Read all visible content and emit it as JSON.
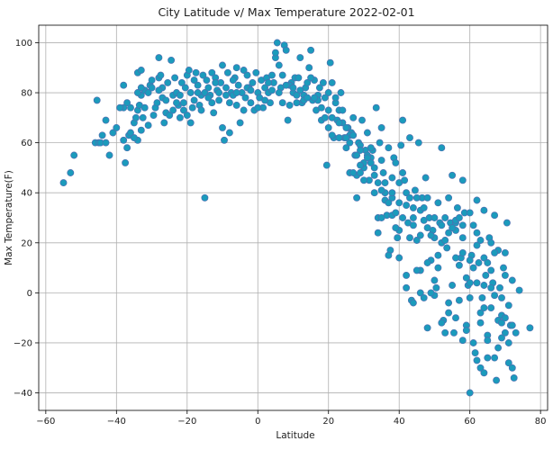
{
  "chart_data": {
    "type": "scatter",
    "title": "City Latitude v/ Max Temperature 2022-02-01",
    "xlabel": "Latitude",
    "ylabel": "Max Temperature(F)",
    "xlim": [
      -62,
      82
    ],
    "ylim": [
      -47,
      107
    ],
    "xticks": [
      -60,
      -40,
      -20,
      0,
      20,
      40,
      60,
      80
    ],
    "yticks": [
      -40,
      -20,
      0,
      20,
      40,
      60,
      80,
      100
    ],
    "grid": true,
    "marker_color": "#1b9bbc",
    "marker_edge": "#4d6fb0",
    "points": [
      [
        -55,
        44
      ],
      [
        -53,
        48
      ],
      [
        -52,
        55
      ],
      [
        -46,
        60
      ],
      [
        -45.5,
        77
      ],
      [
        -45,
        60
      ],
      [
        -44.5,
        60
      ],
      [
        -43,
        69
      ],
      [
        -42,
        55
      ],
      [
        -41,
        64
      ],
      [
        -40,
        66
      ],
      [
        -38,
        83
      ],
      [
        -38,
        61
      ],
      [
        -37.5,
        52
      ],
      [
        -37,
        58
      ],
      [
        -36.5,
        63
      ],
      [
        -36,
        64
      ],
      [
        -35,
        68
      ],
      [
        -34.5,
        70
      ],
      [
        -34,
        73
      ],
      [
        -34,
        61
      ],
      [
        -34,
        88
      ],
      [
        -33.5,
        75
      ],
      [
        -33,
        89
      ],
      [
        -33,
        65
      ],
      [
        -33,
        79
      ],
      [
        -32.5,
        70
      ],
      [
        -32,
        81
      ],
      [
        -31,
        67
      ],
      [
        -30.5,
        83
      ],
      [
        -30,
        85
      ],
      [
        -29.5,
        71
      ],
      [
        -29,
        74
      ],
      [
        -28.5,
        76
      ],
      [
        -28,
        86
      ],
      [
        -28,
        94
      ],
      [
        -27.5,
        87
      ],
      [
        -27,
        78
      ],
      [
        -26.5,
        68
      ],
      [
        -26,
        72
      ],
      [
        -25.5,
        84
      ],
      [
        -25,
        71
      ],
      [
        -24.5,
        93
      ],
      [
        -24,
        79
      ],
      [
        -23.5,
        86
      ],
      [
        -23,
        80
      ],
      [
        -22.5,
        75
      ],
      [
        -22,
        70
      ],
      [
        -21.5,
        84
      ],
      [
        -21,
        76
      ],
      [
        -20.5,
        82
      ],
      [
        -20,
        87
      ],
      [
        -20,
        71
      ],
      [
        -19.5,
        89
      ],
      [
        -19,
        80
      ],
      [
        -19,
        68
      ],
      [
        -18.5,
        74
      ],
      [
        -18,
        85
      ],
      [
        -17.5,
        88
      ],
      [
        -17,
        83
      ],
      [
        -16.5,
        75
      ],
      [
        -16,
        79
      ],
      [
        -15.5,
        87
      ],
      [
        -15,
        80
      ],
      [
        -15,
        38
      ],
      [
        -14.5,
        85
      ],
      [
        -14,
        82
      ],
      [
        -13.5,
        79
      ],
      [
        -13,
        88
      ],
      [
        -12.5,
        72
      ],
      [
        -12,
        86
      ],
      [
        -11.5,
        81
      ],
      [
        -11,
        77
      ],
      [
        -10.5,
        84
      ],
      [
        -10,
        91
      ],
      [
        -10,
        66
      ],
      [
        -9.5,
        61
      ],
      [
        -9,
        82
      ],
      [
        -8.5,
        88
      ],
      [
        -8,
        64
      ],
      [
        -7.5,
        80
      ],
      [
        -7,
        79
      ],
      [
        -6.5,
        86
      ],
      [
        -6,
        90
      ],
      [
        -6,
        75
      ],
      [
        -5.5,
        83
      ],
      [
        -5,
        68
      ],
      [
        -4.5,
        80
      ],
      [
        -4,
        89
      ],
      [
        -3.5,
        78
      ],
      [
        -3,
        87
      ],
      [
        -2.5,
        82
      ],
      [
        -2,
        76
      ],
      [
        -1.5,
        84
      ],
      [
        -1,
        73
      ],
      [
        -0.5,
        88
      ],
      [
        0,
        80
      ],
      [
        0.5,
        78
      ],
      [
        1,
        85
      ],
      [
        1.5,
        74
      ],
      [
        2,
        82
      ],
      [
        2.5,
        86
      ],
      [
        3,
        80
      ],
      [
        3.5,
        76
      ],
      [
        4,
        87
      ],
      [
        4.5,
        84
      ],
      [
        5,
        94
      ],
      [
        5,
        96
      ],
      [
        5.5,
        100
      ],
      [
        6,
        91
      ],
      [
        6.5,
        82
      ],
      [
        7,
        87
      ],
      [
        7.5,
        99
      ],
      [
        8,
        97
      ],
      [
        8.5,
        69
      ],
      [
        9,
        75
      ],
      [
        9.5,
        84
      ],
      [
        10,
        80
      ],
      [
        10.5,
        86
      ],
      [
        11,
        79
      ],
      [
        11.5,
        86
      ],
      [
        12,
        94
      ],
      [
        12.5,
        76
      ],
      [
        13,
        79
      ],
      [
        13.5,
        82
      ],
      [
        14,
        84
      ],
      [
        14.5,
        90
      ],
      [
        15,
        97
      ],
      [
        15.5,
        77
      ],
      [
        16,
        85
      ],
      [
        16.5,
        73
      ],
      [
        17,
        79
      ],
      [
        17.5,
        82
      ],
      [
        18,
        69
      ],
      [
        18.5,
        84
      ],
      [
        19,
        70
      ],
      [
        19.5,
        51
      ],
      [
        20,
        80
      ],
      [
        20,
        66
      ],
      [
        20.5,
        92
      ],
      [
        21,
        70
      ],
      [
        21.5,
        62
      ],
      [
        22,
        76
      ],
      [
        22.5,
        69
      ],
      [
        23,
        73
      ],
      [
        23.5,
        80
      ],
      [
        24,
        68
      ],
      [
        24.5,
        62
      ],
      [
        25,
        58
      ],
      [
        25.5,
        66
      ],
      [
        26,
        48
      ],
      [
        26.5,
        64
      ],
      [
        27,
        70
      ],
      [
        27.5,
        55
      ],
      [
        28,
        47
      ],
      [
        28.5,
        60
      ],
      [
        29,
        59
      ],
      [
        29.5,
        69
      ],
      [
        30,
        50
      ],
      [
        30.5,
        57
      ],
      [
        31,
        64
      ],
      [
        31.5,
        45
      ],
      [
        32,
        54
      ],
      [
        32.5,
        57
      ],
      [
        33,
        40
      ],
      [
        33.5,
        74
      ],
      [
        34,
        24
      ],
      [
        34.5,
        60
      ],
      [
        35,
        66
      ],
      [
        35.5,
        48
      ],
      [
        36,
        44
      ],
      [
        36.5,
        31
      ],
      [
        37,
        58
      ],
      [
        37.5,
        17
      ],
      [
        38,
        38
      ],
      [
        38.5,
        54
      ],
      [
        39,
        52
      ],
      [
        39.5,
        22
      ],
      [
        40,
        44
      ],
      [
        40.5,
        59
      ],
      [
        41,
        69
      ],
      [
        41.5,
        45
      ],
      [
        42,
        7
      ],
      [
        42.5,
        28
      ],
      [
        43,
        62
      ],
      [
        43.5,
        -3
      ],
      [
        44,
        34
      ],
      [
        44.5,
        41
      ],
      [
        45,
        21
      ],
      [
        45.5,
        60
      ],
      [
        46,
        9
      ],
      [
        46.5,
        38
      ],
      [
        47,
        29
      ],
      [
        47.5,
        46
      ],
      [
        48,
        -14
      ],
      [
        48.5,
        30
      ],
      [
        49,
        13
      ],
      [
        49.5,
        25
      ],
      [
        50,
        -1
      ],
      [
        50.5,
        2
      ],
      [
        51,
        36
      ],
      [
        51.5,
        28
      ],
      [
        52,
        58
      ],
      [
        52.5,
        -11
      ],
      [
        53,
        30
      ],
      [
        53.5,
        18
      ],
      [
        54,
        -4
      ],
      [
        54.5,
        28
      ],
      [
        55,
        47
      ],
      [
        55.5,
        -16
      ],
      [
        56,
        25
      ],
      [
        56.5,
        34
      ],
      [
        57,
        -3
      ],
      [
        57.5,
        14
      ],
      [
        58,
        45
      ],
      [
        58.5,
        32
      ],
      [
        59,
        -13
      ],
      [
        59.5,
        3
      ],
      [
        60,
        -40
      ],
      [
        60.5,
        15
      ],
      [
        61,
        27
      ],
      [
        61.5,
        -24
      ],
      [
        62,
        37
      ],
      [
        62.5,
        12
      ],
      [
        63,
        -30
      ],
      [
        63.5,
        -2
      ],
      [
        64,
        33
      ],
      [
        64.5,
        7
      ],
      [
        65,
        -17
      ],
      [
        65.5,
        22
      ],
      [
        66,
        -6
      ],
      [
        66.5,
        4
      ],
      [
        67,
        31
      ],
      [
        67.5,
        -35
      ],
      [
        68,
        -22
      ],
      [
        68.5,
        2
      ],
      [
        69,
        -9
      ],
      [
        69.5,
        10
      ],
      [
        70,
        -16
      ],
      [
        70.5,
        28
      ],
      [
        71,
        -28
      ],
      [
        71.5,
        -13
      ],
      [
        72,
        5
      ],
      [
        72.5,
        -34
      ],
      [
        73,
        -16
      ],
      [
        74,
        1
      ],
      [
        77,
        -14
      ],
      [
        -35,
        62
      ],
      [
        -31,
        80
      ],
      [
        -27,
        82
      ],
      [
        -22,
        79
      ],
      [
        -18,
        77
      ],
      [
        -11,
        80
      ],
      [
        -8,
        76
      ],
      [
        -3,
        82
      ],
      [
        2,
        77
      ],
      [
        6,
        80
      ],
      [
        9,
        83
      ],
      [
        13,
        77
      ],
      [
        17,
        77
      ],
      [
        19,
        78
      ],
      [
        23,
        62
      ],
      [
        26,
        63
      ],
      [
        29,
        57
      ],
      [
        32,
        52
      ],
      [
        35,
        53
      ],
      [
        38,
        46
      ],
      [
        40,
        36
      ],
      [
        42,
        35
      ],
      [
        44,
        27
      ],
      [
        46,
        23
      ],
      [
        48,
        26
      ],
      [
        50,
        22
      ],
      [
        52,
        27
      ],
      [
        54,
        24
      ],
      [
        56,
        28
      ],
      [
        58,
        16
      ],
      [
        60,
        4
      ],
      [
        62,
        19
      ],
      [
        64,
        14
      ],
      [
        66,
        9
      ],
      [
        68,
        -11
      ],
      [
        70,
        7
      ],
      [
        60,
        13
      ],
      [
        63,
        -8
      ],
      [
        65,
        -19
      ],
      [
        67,
        -26
      ],
      [
        69,
        -12
      ],
      [
        71,
        -20
      ],
      [
        62,
        -27
      ],
      [
        64,
        -32
      ],
      [
        58,
        -19
      ],
      [
        56,
        -10
      ],
      [
        54,
        -8
      ],
      [
        52,
        -12
      ],
      [
        50,
        5
      ],
      [
        48,
        12
      ],
      [
        46,
        0
      ],
      [
        44,
        -4
      ],
      [
        42,
        2
      ],
      [
        40,
        14
      ],
      [
        38,
        31
      ],
      [
        36,
        37
      ],
      [
        34,
        44
      ],
      [
        30,
        52
      ],
      [
        28,
        55
      ],
      [
        24,
        73
      ],
      [
        22,
        78
      ],
      [
        20,
        73
      ],
      [
        18,
        74
      ],
      [
        16,
        78
      ],
      [
        14,
        78
      ],
      [
        12,
        81
      ],
      [
        10,
        82
      ],
      [
        8,
        83
      ],
      [
        4,
        81
      ],
      [
        0,
        74
      ],
      [
        -4,
        73
      ],
      [
        -6,
        80
      ],
      [
        -13,
        76
      ],
      [
        -16,
        73
      ],
      [
        -21,
        73
      ],
      [
        -24,
        73
      ],
      [
        -30,
        82
      ],
      [
        -33,
        82
      ],
      [
        -36,
        74
      ],
      [
        -38,
        74
      ],
      [
        48,
        38
      ],
      [
        46,
        33
      ],
      [
        44,
        30
      ],
      [
        42,
        40
      ],
      [
        40,
        25
      ],
      [
        38,
        40
      ],
      [
        36,
        40
      ],
      [
        34,
        30
      ],
      [
        32,
        58
      ],
      [
        30,
        45
      ],
      [
        28,
        38
      ],
      [
        26,
        60
      ],
      [
        50,
        30
      ],
      [
        52,
        20
      ],
      [
        54,
        38
      ],
      [
        56,
        29
      ],
      [
        58,
        27
      ],
      [
        60,
        32
      ],
      [
        62,
        24
      ],
      [
        64,
        -6
      ],
      [
        66,
        2
      ],
      [
        68,
        17
      ],
      [
        70,
        16
      ],
      [
        72,
        -30
      ],
      [
        59,
        -15
      ],
      [
        61,
        -20
      ],
      [
        63,
        -12
      ],
      [
        65,
        -26
      ],
      [
        67,
        -1
      ],
      [
        69,
        -18
      ],
      [
        71,
        -5
      ],
      [
        57,
        11
      ],
      [
        55,
        3
      ],
      [
        53,
        -16
      ],
      [
        51,
        10
      ],
      [
        49,
        0
      ],
      [
        47,
        -2
      ],
      [
        45,
        9
      ],
      [
        43,
        22
      ],
      [
        41,
        48
      ],
      [
        39,
        32
      ],
      [
        37,
        15
      ],
      [
        35,
        41
      ],
      [
        33,
        47
      ],
      [
        31,
        55
      ],
      [
        29,
        51
      ],
      [
        27,
        63
      ],
      [
        25,
        62
      ],
      [
        21,
        84
      ],
      [
        15,
        86
      ],
      [
        11,
        76
      ],
      [
        7,
        76
      ],
      [
        3,
        84
      ],
      [
        -2,
        81
      ],
      [
        -7,
        85
      ],
      [
        -9,
        79
      ],
      [
        -12,
        84
      ],
      [
        -14,
        78
      ],
      [
        -17,
        80
      ],
      [
        -23,
        76
      ],
      [
        -26,
        77
      ],
      [
        -28,
        81
      ],
      [
        -32,
        74
      ],
      [
        -34,
        80
      ],
      [
        -37,
        76
      ],
      [
        -39,
        74
      ],
      [
        -43,
        60
      ],
      [
        -44,
        63
      ],
      [
        65,
        12
      ],
      [
        66,
        20
      ],
      [
        67,
        16
      ],
      [
        60,
        -2
      ],
      [
        61,
        10
      ],
      [
        62,
        4
      ],
      [
        63,
        21
      ],
      [
        64,
        3
      ],
      [
        69,
        -2
      ],
      [
        70,
        -10
      ],
      [
        72,
        -13
      ],
      [
        58,
        22
      ],
      [
        59,
        6
      ],
      [
        57,
        30
      ],
      [
        56,
        14
      ],
      [
        55,
        26
      ],
      [
        53,
        21
      ],
      [
        51,
        15
      ],
      [
        49,
        23
      ],
      [
        47,
        34
      ],
      [
        45,
        38
      ],
      [
        43,
        38
      ],
      [
        41,
        30
      ],
      [
        39,
        26
      ],
      [
        37,
        36
      ],
      [
        35,
        30
      ],
      [
        33,
        50
      ],
      [
        31,
        54
      ],
      [
        29,
        48
      ],
      [
        27,
        48
      ],
      [
        25,
        66
      ],
      [
        23,
        68
      ],
      [
        21,
        63
      ]
    ]
  }
}
